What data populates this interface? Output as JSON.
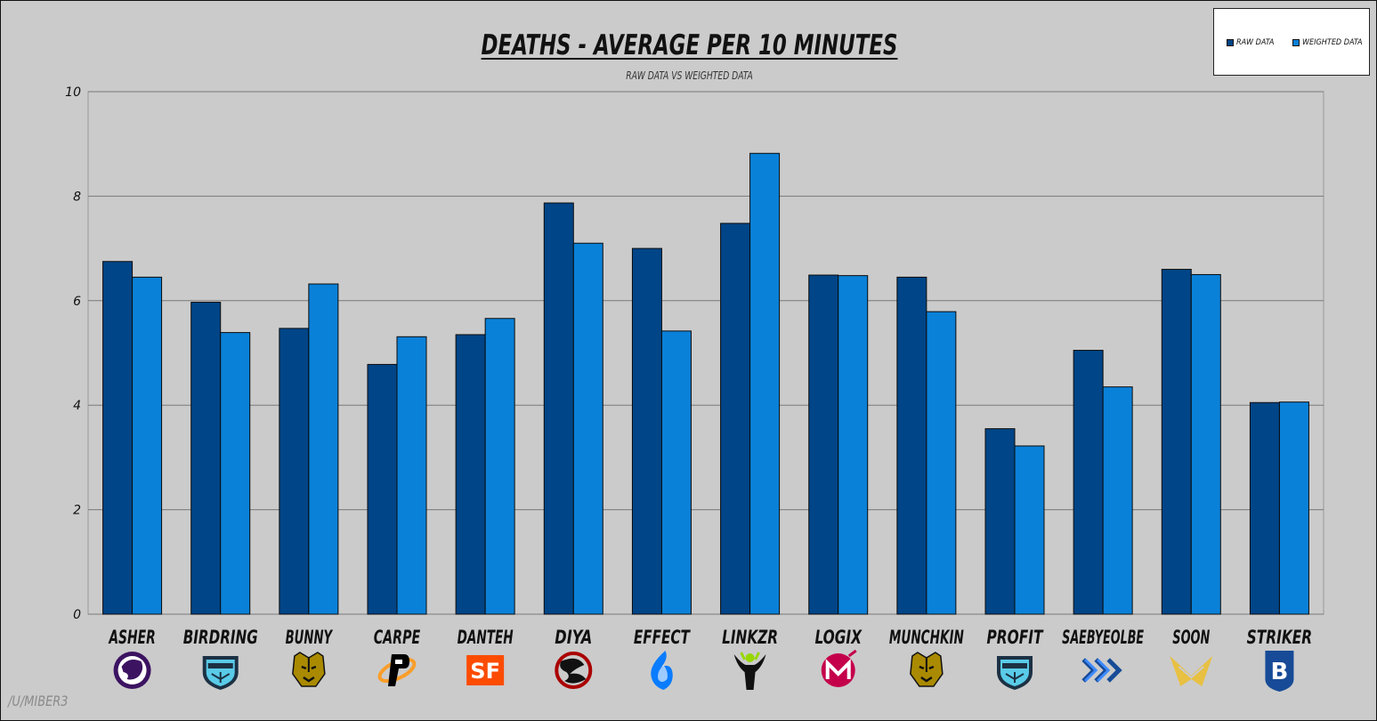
{
  "chart_data": {
    "type": "bar",
    "title": "DEATHS - AVERAGE PER 10 MINUTES",
    "subtitle": "RAW DATA VS WEIGHTED DATA",
    "xlabel": "",
    "ylabel": "",
    "ylim": [
      0,
      10
    ],
    "yticks": [
      0,
      2,
      4,
      6,
      8,
      10
    ],
    "grid": true,
    "legend_position": "top-right",
    "categories": [
      "ASHER",
      "BIRDRING",
      "BUNNY",
      "CARPE",
      "DANTEH",
      "DIYA",
      "EFFECT",
      "LINKZR",
      "LOGIX",
      "MUNCHKIN",
      "PROFIT",
      "SAEBYEOLBE",
      "SOON",
      "STRIKER"
    ],
    "series": [
      {
        "name": "RAW DATA",
        "color": "#004587",
        "values": [
          6.75,
          5.97,
          5.47,
          4.78,
          5.35,
          7.87,
          7.0,
          7.48,
          6.49,
          6.45,
          3.55,
          5.05,
          6.6,
          4.05
        ]
      },
      {
        "name": "WEIGHTED DATA",
        "color": "#0a81d8",
        "values": [
          6.45,
          5.39,
          6.32,
          5.31,
          5.66,
          7.1,
          5.42,
          8.82,
          6.48,
          5.79,
          3.22,
          4.35,
          6.5,
          4.06
        ]
      }
    ],
    "team_icons": [
      "gladiators-logo-icon",
      "spitfire-logo-icon",
      "dynasty-logo-icon",
      "fusion-logo-icon",
      "shock-logo-icon",
      "dragons-logo-icon",
      "fuel-logo-icon",
      "outlaws-logo-icon",
      "mayhem-logo-icon",
      "dynasty-logo-icon",
      "spitfire-logo-icon",
      "excelsior-logo-icon",
      "valiant-logo-icon",
      "uprising-logo-icon"
    ]
  },
  "credit": "/U/MIBER3"
}
